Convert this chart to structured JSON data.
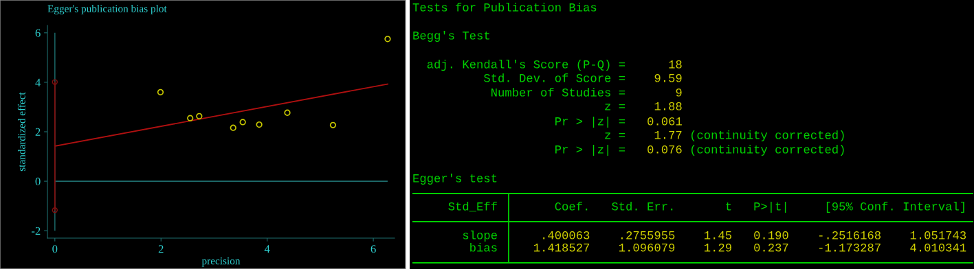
{
  "chart_data": [
    {
      "type": "scatter",
      "title": "Egger's publication bias plot",
      "xlabel": "precision",
      "ylabel": "standardized effect",
      "xlim": [
        -0.14,
        6.4
      ],
      "ylim": [
        -2.3,
        6.3
      ],
      "xticks": [
        0,
        2,
        4,
        6
      ],
      "yticks": [
        -2,
        0,
        2,
        4,
        6
      ],
      "marker": "circle",
      "series": [
        {
          "type": "scatter",
          "color": "#c8c800",
          "x": [
            1.99,
            2.55,
            2.72,
            3.36,
            3.54,
            3.85,
            4.38,
            5.24,
            6.27
          ],
          "values": [
            3.6,
            2.55,
            2.63,
            2.16,
            2.39,
            2.29,
            2.77,
            2.27,
            5.75
          ]
        },
        {
          "type": "line",
          "color": "#b01010",
          "marker": "none",
          "x": [
            0,
            6.27
          ],
          "values": [
            1.42,
            3.93
          ]
        },
        {
          "type": "line",
          "color": "#801010",
          "marker": "circle",
          "x": [
            0,
            0
          ],
          "values": [
            4.01,
            -1.17
          ]
        }
      ],
      "ref_lines": [
        {
          "axis": "y",
          "value": 0,
          "color": "#1e6b6b"
        },
        {
          "axis": "x",
          "value": 0,
          "color": "#195f5f"
        }
      ]
    },
    {
      "type": "other",
      "title": "Tests for Publication Bias",
      "annotations": [
        "Begg's Test",
        "  adj. Kendall's Score (P-Q) =      18",
        "          Std. Dev. of Score =    9.59",
        "           Number of Studies =       9",
        "                           z =    1.88",
        "                    Pr > |z| =   0.061",
        "                           z =    1.77 (continuity corrected)",
        "                    Pr > |z| =   0.076 (continuity corrected)",
        "Egger's test",
        "     Std_Eff        Coef.   Std. Err.       t   P>|t|     [95% Conf. Interval]",
        "       slope      .400063    .2755955    1.45   0.190    -.2516168    1.051743",
        "        bias     1.418527    1.096079    1.29   0.237    -1.173287    4.010341"
      ]
    }
  ]
}
